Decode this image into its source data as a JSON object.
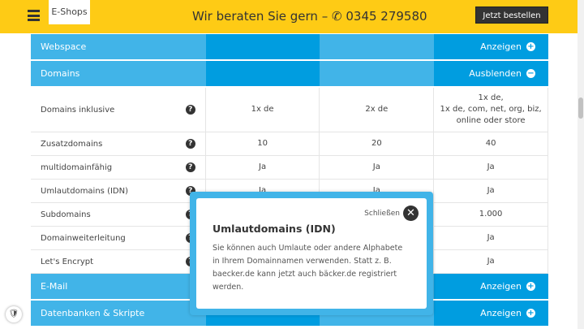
{
  "header": {
    "logo": "E-Shops",
    "hotline": "Wir beraten Sie gern –",
    "phone": "0345 279580",
    "order_button": "Jetzt bestellen"
  },
  "sections": {
    "webspace": {
      "label": "Webspace",
      "toggle": "Anzeigen"
    },
    "domains": {
      "label": "Domains",
      "toggle": "Ausblenden"
    },
    "email": {
      "label": "E-Mail",
      "toggle": "Anzeigen"
    },
    "db": {
      "label": "Datenbanken & Skripte",
      "toggle": "Anzeigen"
    }
  },
  "rows": [
    {
      "label": "Domains inklusive",
      "v": [
        "1x de",
        "2x de",
        "1x de,\n1x de, com, net, org, biz,\nonline oder store"
      ]
    },
    {
      "label": "Zusatzdomains",
      "v": [
        "10",
        "20",
        "40"
      ]
    },
    {
      "label": "multidomainfähig",
      "v": [
        "Ja",
        "Ja",
        "Ja"
      ]
    },
    {
      "label": "Umlautdomains (IDN)",
      "v": [
        "Ja",
        "Ja",
        "Ja"
      ]
    },
    {
      "label": "Subdomains",
      "v": [
        "",
        "",
        "1.000"
      ]
    },
    {
      "label": "Domainweiterleitung",
      "v": [
        "",
        "",
        "Ja"
      ]
    },
    {
      "label": "Let's Encrypt",
      "v": [
        "",
        "",
        "Ja"
      ]
    }
  ],
  "popup": {
    "close": "Schließen",
    "title": "Umlautdomains (IDN)",
    "text": "Sie können auch Umlaute oder andere Alphabete in Ihrem Domainnamen verwenden. Statt z. B. baecker.de kann jetzt auch bäcker.de registriert werden."
  },
  "colors": {
    "header": "#fecb15",
    "blue": "#009de0",
    "light_blue": "#41b4e8"
  }
}
